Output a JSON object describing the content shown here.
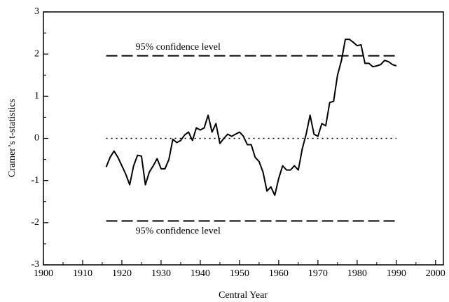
{
  "chart_data": {
    "type": "line",
    "xlabel": "Central Year",
    "ylabel": "Cramer’s  t-statistics",
    "x": [
      1916,
      1917,
      1918,
      1919,
      1920,
      1921,
      1922,
      1923,
      1924,
      1925,
      1926,
      1927,
      1928,
      1929,
      1930,
      1931,
      1932,
      1933,
      1934,
      1935,
      1936,
      1937,
      1938,
      1939,
      1940,
      1941,
      1942,
      1943,
      1944,
      1945,
      1946,
      1947,
      1948,
      1949,
      1950,
      1951,
      1952,
      1953,
      1954,
      1955,
      1956,
      1957,
      1958,
      1959,
      1960,
      1961,
      1962,
      1963,
      1964,
      1965,
      1966,
      1967,
      1968,
      1969,
      1970,
      1971,
      1972,
      1973,
      1974,
      1975,
      1976,
      1977,
      1978,
      1979,
      1980,
      1981,
      1982,
      1983,
      1984,
      1985,
      1986,
      1987,
      1988,
      1989,
      1990
    ],
    "series": [
      {
        "color": "#000000",
        "values": [
          -0.68,
          -0.45,
          -0.3,
          -0.45,
          -0.65,
          -0.85,
          -1.1,
          -0.65,
          -0.4,
          -0.42,
          -1.1,
          -0.8,
          -0.65,
          -0.48,
          -0.72,
          -0.72,
          -0.5,
          -0.02,
          -0.1,
          -0.05,
          0.08,
          0.15,
          -0.05,
          0.25,
          0.2,
          0.25,
          0.55,
          0.15,
          0.35,
          -0.12,
          0.0,
          0.1,
          0.05,
          0.1,
          0.15,
          0.05,
          -0.15,
          -0.15,
          -0.45,
          -0.55,
          -0.8,
          -1.25,
          -1.15,
          -1.35,
          -0.95,
          -0.65,
          -0.75,
          -0.75,
          -0.65,
          -0.75,
          -0.25,
          0.1,
          0.55,
          0.1,
          0.05,
          0.35,
          0.3,
          0.85,
          0.88,
          1.5,
          1.85,
          2.35,
          2.35,
          2.28,
          2.2,
          2.22,
          1.78,
          1.78,
          1.7,
          1.72,
          1.75,
          1.85,
          1.82,
          1.75,
          1.72
        ]
      }
    ],
    "reference_lines": [
      {
        "y": 1.96,
        "style": "dashed",
        "label": "95% confidence level"
      },
      {
        "y": 0,
        "style": "dotted"
      },
      {
        "y": -1.96,
        "style": "dashed",
        "label": "95% confidence level"
      }
    ],
    "xlim": [
      1900,
      2002
    ],
    "xticks": [
      1900,
      1910,
      1920,
      1930,
      1940,
      1950,
      1960,
      1970,
      1980,
      1990,
      2000
    ],
    "ylim": [
      -3,
      3
    ],
    "yticks": [
      -3,
      -2,
      -1,
      0,
      1,
      2,
      3
    ]
  }
}
